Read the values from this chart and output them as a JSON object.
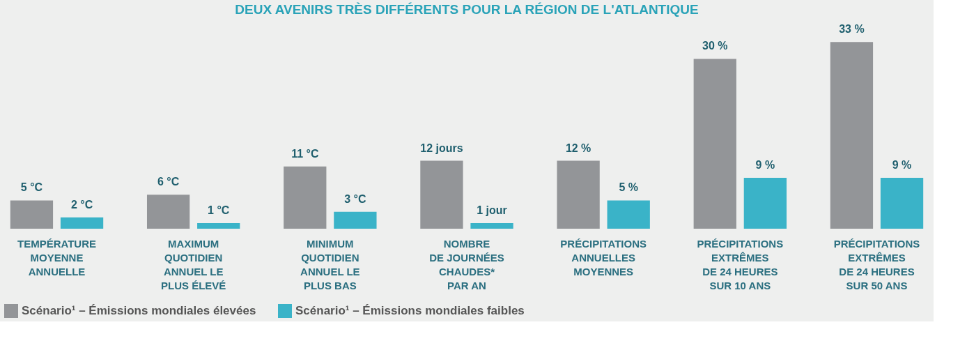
{
  "chart_data": {
    "type": "bar",
    "title": "DEUX AVENIRS TRÈS DIFFÉRENTS POUR LA RÉGION DE L'ATLANTIQUE",
    "categories": [
      "TEMPÉRATURE\nMOYENNE\nANNUELLE",
      "MAXIMUM\nQUOTIDIEN\nANNUEL LE\nPLUS ÉLEVÉ",
      "MINIMUM\nQUOTIDIEN\nANNUEL LE\nPLUS BAS",
      "NOMBRE\nDE JOURNÉES\nCHAUDES*\nPAR AN",
      "PRÉCIPITATIONS\nANNUELLES\nMOYENNES",
      "PRÉCIPITATIONS\nEXTRÊMES\nDE 24 HEURES\nSUR 10 ANS",
      "PRÉCIPITATIONS\nEXTRÊMES\nDE 24 HEURES\nSUR 50 ANS"
    ],
    "series": [
      {
        "name": "Scénario¹ – Émissions mondiales élevées",
        "color": "#939598",
        "values": [
          5,
          6,
          11,
          12,
          12,
          30,
          33
        ],
        "value_labels": [
          "5 °C",
          "6 °C",
          "11 °C",
          "12 jours",
          "12 %",
          "30 %",
          "33 %"
        ]
      },
      {
        "name": "Scénario¹ – Émissions mondiales faibles",
        "color": "#3ab3c8",
        "values": [
          2,
          1,
          3,
          1,
          5,
          9,
          9
        ],
        "value_labels": [
          "2 °C",
          "1 °C",
          "3 °C",
          "1 jour",
          "5 %",
          "9 %",
          "9 %"
        ]
      }
    ],
    "legend": "bottom",
    "grid": false
  }
}
